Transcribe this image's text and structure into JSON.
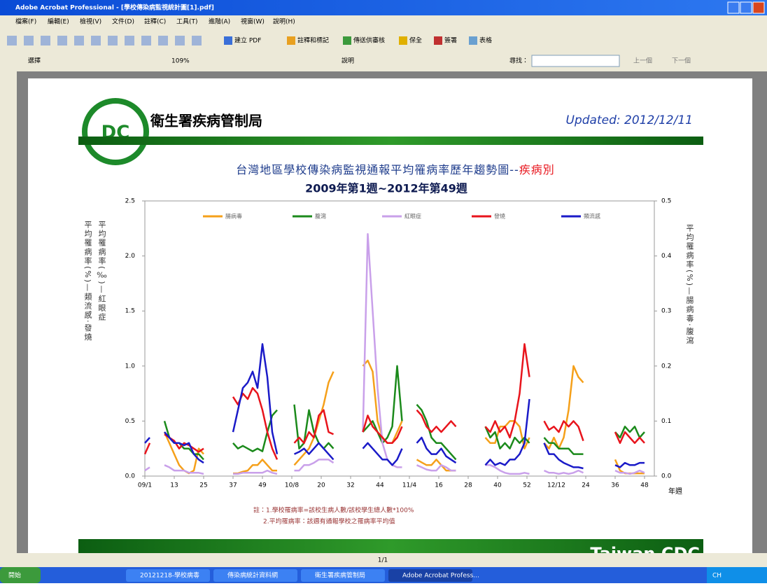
{
  "window": {
    "title": "Adobe Acrobat Professional - [學校傳染病監視統計圖[1].pdf]",
    "menus": [
      "檔案(F)",
      "編輯(E)",
      "檢視(V)",
      "文件(D)",
      "註釋(C)",
      "工具(T)",
      "進階(A)",
      "視窗(W)",
      "說明(H)"
    ],
    "toolbar": [
      "建立 PDF",
      "註釋和標記",
      "傳送供審核",
      "保全",
      "簽署",
      "表格"
    ],
    "toolbar2": [
      "選擇",
      "109%",
      "說明"
    ],
    "find_label": "尋找：",
    "find_prev": "上一個",
    "find_next": "下一個",
    "page_indicator": "1/1",
    "taskbar": [
      "開始",
      "20121218-學校病毒",
      "傳染病統計資料網",
      "衛生署疾病管制局",
      "Adobe Acrobat Profess..."
    ],
    "tray": "CH"
  },
  "document": {
    "org": "衛生署疾病管制局",
    "updated": "Updated: 2012/12/11",
    "footer_brand": "Taiwan CDC"
  },
  "chart_data": {
    "type": "line",
    "title": "台灣地區學校傳染病監視通報平均罹病率歷年趨勢圖--",
    "title_highlight": "疾病別",
    "subtitle": "2009年第1週~2012年第49週",
    "ylabel": "平均罹病率(%)—類流感·發燒",
    "ylabel_extra": "平均罹病率(‰)—紅眼症",
    "y2label": "平均罹病率(%)—腸病毒·腹瀉",
    "xlabel": "年週",
    "notes": [
      "註：1.學校罹病率=該校生病人數/該校學生總人數*100%",
      "2.平均罹病率：該週有通報學校之罹病率平均值"
    ],
    "xlim": [
      0,
      208
    ],
    "ylim": [
      0,
      2.5
    ],
    "y2lim": [
      0,
      0.5
    ],
    "xticks": [
      {
        "value": 0,
        "label": "09/1"
      },
      {
        "value": 12,
        "label": "13"
      },
      {
        "value": 24,
        "label": "25"
      },
      {
        "value": 36,
        "label": "37"
      },
      {
        "value": 48,
        "label": "49"
      },
      {
        "value": 60,
        "label": "10/8"
      },
      {
        "value": 72,
        "label": "20"
      },
      {
        "value": 84,
        "label": "32"
      },
      {
        "value": 96,
        "label": "44"
      },
      {
        "value": 108,
        "label": "11/4"
      },
      {
        "value": 120,
        "label": "16"
      },
      {
        "value": 132,
        "label": "28"
      },
      {
        "value": 144,
        "label": "40"
      },
      {
        "value": 156,
        "label": "52"
      },
      {
        "value": 168,
        "label": "12/12"
      },
      {
        "value": 180,
        "label": "24"
      },
      {
        "value": 192,
        "label": "36"
      },
      {
        "value": 204,
        "label": "48"
      }
    ],
    "yticks": [
      {
        "value": 0,
        "label": "0.0"
      },
      0.5,
      {
        "value": 1,
        "label": "1.0"
      },
      1.5,
      {
        "value": 2,
        "label": "2.0"
      },
      2.5
    ],
    "y2ticks": [
      {
        "value": 0,
        "label": "0.0"
      },
      0.1,
      0.2,
      0.3,
      0.4,
      0.5
    ],
    "x": [
      0,
      2,
      4,
      6,
      8,
      10,
      12,
      14,
      16,
      18,
      20,
      22,
      24,
      30,
      36,
      38,
      40,
      42,
      44,
      46,
      48,
      50,
      52,
      54,
      58,
      61,
      63,
      65,
      67,
      69,
      71,
      73,
      75,
      77,
      83,
      89,
      91,
      93,
      95,
      97,
      99,
      101,
      103,
      105,
      108,
      111,
      113,
      115,
      117,
      119,
      121,
      123,
      125,
      127,
      133,
      139,
      141,
      143,
      145,
      147,
      149,
      151,
      153,
      155,
      157,
      160,
      163,
      165,
      167,
      169,
      171,
      173,
      175,
      177,
      179,
      186,
      192,
      194,
      196,
      198,
      200,
      202,
      204
    ],
    "series": [
      {
        "name": "腸病毒",
        "color": "#f5a01a",
        "axis": "y2",
        "values": [
          null,
          null,
          null,
          null,
          0.08,
          0.06,
          0.04,
          0.02,
          0.01,
          0.005,
          0.01,
          0.05,
          0.04,
          null,
          0.005,
          0.005,
          0.008,
          0.01,
          0.02,
          0.02,
          0.03,
          0.02,
          0.01,
          0.01,
          null,
          0.02,
          0.03,
          0.04,
          0.05,
          0.07,
          0.1,
          0.13,
          0.17,
          0.19,
          null,
          0.2,
          0.21,
          0.19,
          0.1,
          0.07,
          0.06,
          0.06,
          0.08,
          0.1,
          null,
          0.03,
          0.025,
          0.02,
          0.02,
          0.03,
          0.02,
          0.01,
          0.01,
          0.01,
          null,
          0.07,
          0.06,
          0.06,
          0.09,
          0.09,
          0.1,
          0.1,
          0.09,
          0.05,
          0.07,
          null,
          0.06,
          0.05,
          0.07,
          0.05,
          0.07,
          0.12,
          0.2,
          0.18,
          0.17,
          null,
          0.03,
          0.01,
          0.005,
          0.005,
          0.005,
          0.005,
          0.005
        ]
      },
      {
        "name": "腹瀉",
        "color": "#1b8a1b",
        "axis": "y2",
        "values": [
          null,
          null,
          null,
          null,
          0.1,
          0.07,
          0.06,
          0.06,
          0.05,
          0.05,
          0.04,
          0.04,
          0.03,
          null,
          0.06,
          0.05,
          0.055,
          0.05,
          0.045,
          0.05,
          0.045,
          0.08,
          0.11,
          0.12,
          null,
          0.13,
          0.05,
          0.06,
          0.12,
          0.08,
          0.06,
          0.05,
          0.06,
          0.05,
          null,
          0.08,
          0.09,
          0.1,
          0.08,
          0.06,
          0.07,
          0.09,
          0.2,
          0.1,
          null,
          0.13,
          0.12,
          0.1,
          0.07,
          0.06,
          0.06,
          0.05,
          0.04,
          0.03,
          null,
          0.09,
          0.07,
          0.08,
          0.05,
          0.06,
          0.05,
          0.07,
          0.06,
          0.07,
          0.06,
          null,
          0.07,
          0.06,
          0.06,
          0.05,
          0.05,
          0.05,
          0.04,
          0.04,
          0.04,
          null,
          0.08,
          0.07,
          0.09,
          0.08,
          0.09,
          0.07,
          0.08
        ]
      },
      {
        "name": "紅眼症",
        "color": "#c9a0ea",
        "values": [
          0.05,
          0.08,
          null,
          null,
          0.1,
          0.08,
          0.05,
          0.05,
          0.05,
          0.03,
          0.03,
          0.03,
          0.02,
          null,
          0.02,
          0.02,
          0.03,
          0.03,
          0.03,
          0.03,
          0.03,
          0.05,
          0.03,
          0.02,
          null,
          0.05,
          0.05,
          0.1,
          0.1,
          0.12,
          0.15,
          0.15,
          0.15,
          0.12,
          null,
          0.4,
          2.2,
          1.5,
          0.8,
          0.3,
          0.15,
          0.1,
          0.08,
          0.08,
          null,
          0.1,
          0.08,
          0.06,
          0.05,
          0.05,
          0.1,
          0.08,
          0.05,
          0.05,
          null,
          0.1,
          0.1,
          0.08,
          0.05,
          0.03,
          0.02,
          0.02,
          0.02,
          0.03,
          0.02,
          null,
          0.05,
          0.03,
          0.03,
          0.02,
          0.03,
          0.02,
          0.03,
          0.05,
          0.03,
          null,
          0.05,
          0.03,
          0.03,
          0.02,
          0.03,
          0.05,
          0.03
        ]
      },
      {
        "name": "發燒",
        "color": "#e8141c",
        "values": [
          0.2,
          0.3,
          null,
          null,
          0.38,
          0.35,
          0.32,
          0.25,
          0.3,
          0.28,
          0.25,
          0.22,
          0.25,
          null,
          0.72,
          0.65,
          0.75,
          0.7,
          0.8,
          0.75,
          0.6,
          0.4,
          0.25,
          0.15,
          null,
          0.3,
          0.35,
          0.3,
          0.4,
          0.35,
          0.55,
          0.6,
          0.4,
          0.38,
          null,
          0.4,
          0.55,
          0.45,
          0.4,
          0.35,
          0.3,
          0.3,
          0.35,
          0.45,
          null,
          0.6,
          0.55,
          0.45,
          0.4,
          0.45,
          0.4,
          0.45,
          0.5,
          0.45,
          null,
          0.45,
          0.4,
          0.5,
          0.4,
          0.45,
          0.35,
          0.5,
          0.75,
          1.2,
          0.9,
          null,
          0.5,
          0.42,
          0.45,
          0.4,
          0.5,
          0.45,
          0.5,
          0.45,
          0.32,
          null,
          0.4,
          0.3,
          0.4,
          0.35,
          0.3,
          0.35,
          0.3
        ]
      },
      {
        "name": "類流感",
        "color": "#1a1ac8",
        "values": [
          0.3,
          0.35,
          null,
          null,
          0.4,
          0.35,
          0.3,
          0.3,
          0.28,
          0.3,
          0.2,
          0.15,
          0.12,
          null,
          0.4,
          0.6,
          0.8,
          0.85,
          0.95,
          0.8,
          1.2,
          0.9,
          0.4,
          0.2,
          null,
          0.2,
          0.22,
          0.25,
          0.2,
          0.25,
          0.3,
          0.25,
          0.2,
          0.15,
          null,
          0.25,
          0.3,
          0.25,
          0.2,
          0.15,
          0.15,
          0.1,
          0.15,
          0.25,
          null,
          0.3,
          0.35,
          0.25,
          0.2,
          0.2,
          0.25,
          0.18,
          0.15,
          0.12,
          null,
          0.1,
          0.15,
          0.1,
          0.12,
          0.1,
          0.15,
          0.15,
          0.2,
          0.3,
          0.7,
          null,
          0.3,
          0.2,
          0.2,
          0.15,
          0.12,
          0.1,
          0.08,
          0.08,
          0.07,
          null,
          0.1,
          0.08,
          0.12,
          0.1,
          0.1,
          0.12,
          0.12
        ]
      }
    ]
  }
}
